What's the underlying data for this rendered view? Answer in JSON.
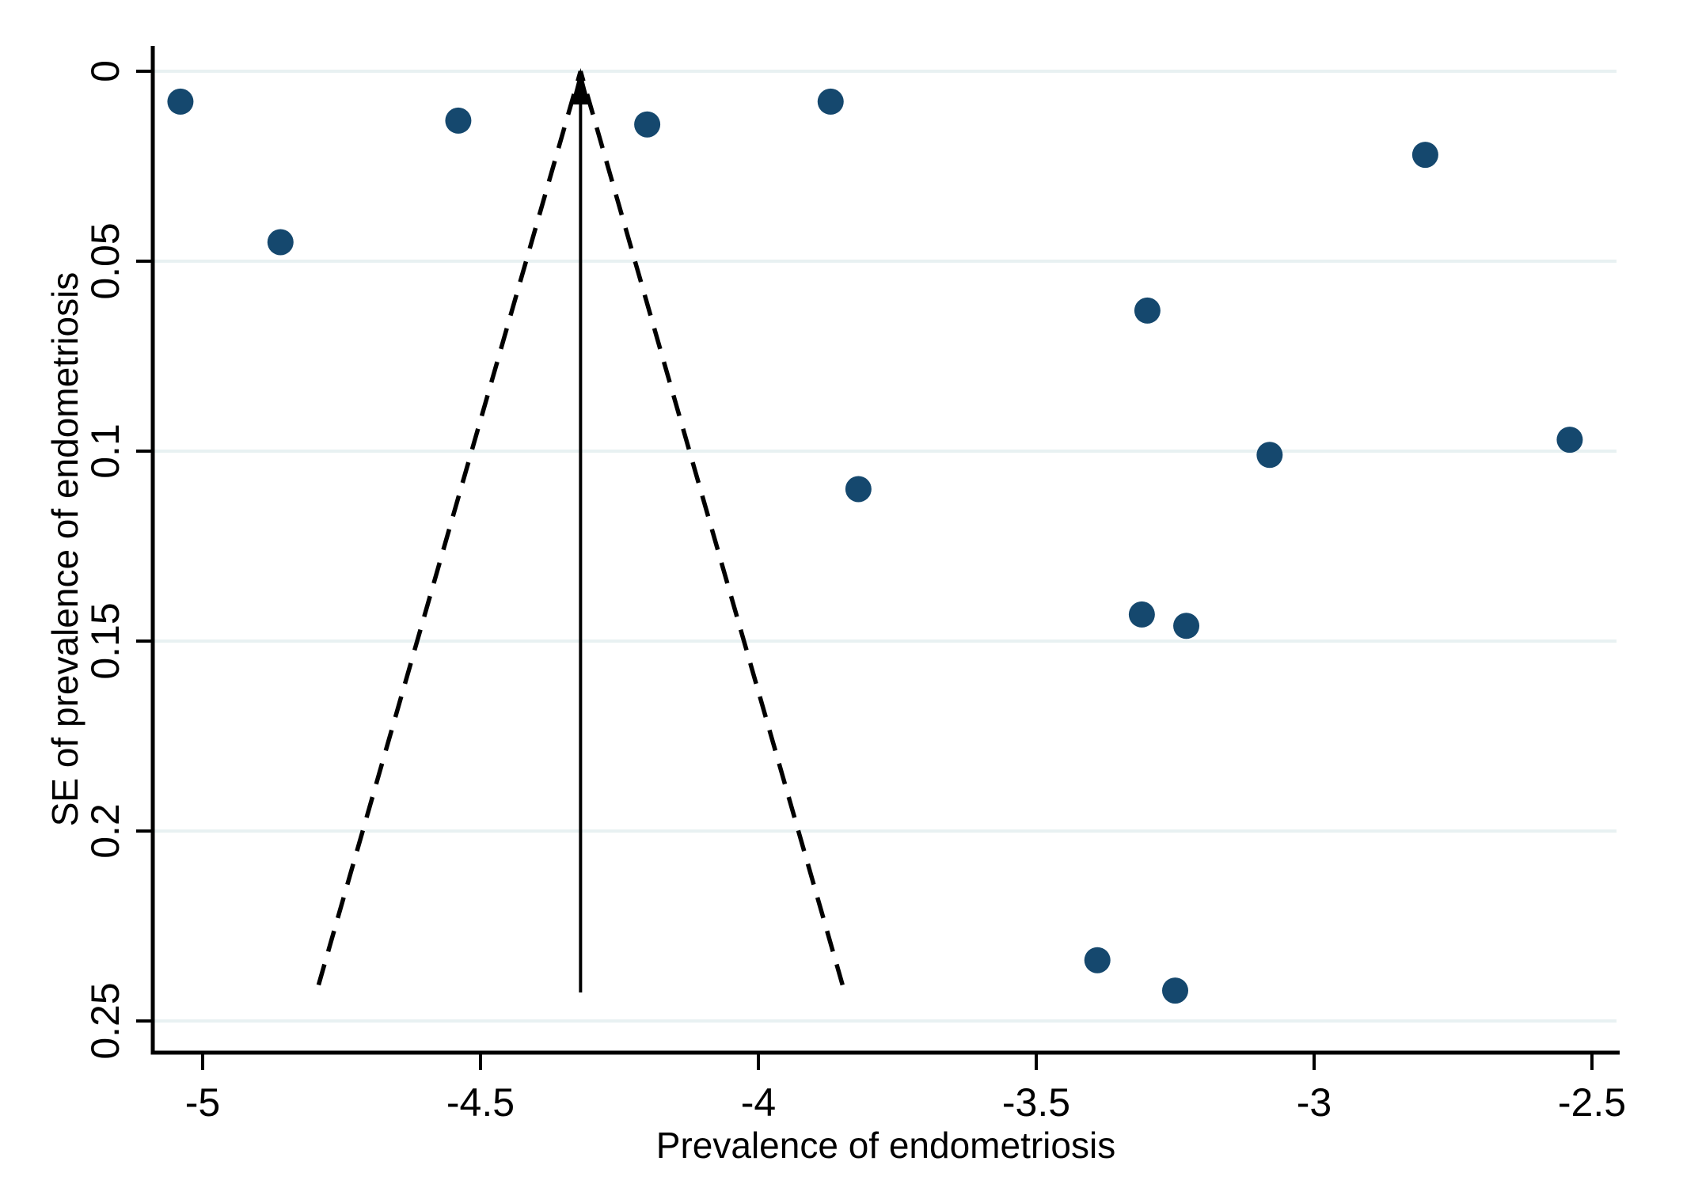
{
  "figure": {
    "kind": "funnel-plot",
    "x_axis_title": "Prevalence of endometriosis",
    "y_axis_title": "SE of prevalence of endometriosis"
  },
  "chart_data": {
    "type": "scatter",
    "title": "",
    "xlabel": "Prevalence of endometriosis",
    "ylabel": "SE of prevalence of endometriosis",
    "xlim": [
      -5.09,
      -2.45
    ],
    "ylim": [
      0,
      0.2583
    ],
    "y_axis_inverted": true,
    "grid": "horizontal",
    "legend": "none",
    "x_ticks": [
      -5,
      -4.5,
      -4,
      -3.5,
      -3,
      -2.5
    ],
    "x_tick_labels": [
      "-5",
      "-4.5",
      "-4",
      "-3.5",
      "-3",
      "-2.5"
    ],
    "y_ticks": [
      0,
      0.05,
      0.1,
      0.15,
      0.2,
      0.25
    ],
    "y_tick_labels": [
      "0",
      "0.05",
      "0.1",
      "0.15",
      "0.2",
      "0.25"
    ],
    "points": [
      {
        "x": -5.04,
        "se": 0.008
      },
      {
        "x": -4.86,
        "se": 0.045
      },
      {
        "x": -4.54,
        "se": 0.013
      },
      {
        "x": -4.2,
        "se": 0.014
      },
      {
        "x": -3.87,
        "se": 0.008
      },
      {
        "x": -3.82,
        "se": 0.11
      },
      {
        "x": -3.3,
        "se": 0.063
      },
      {
        "x": -3.31,
        "se": 0.143
      },
      {
        "x": -3.23,
        "se": 0.146
      },
      {
        "x": -3.08,
        "se": 0.101
      },
      {
        "x": -2.8,
        "se": 0.022
      },
      {
        "x": -2.54,
        "se": 0.097
      },
      {
        "x": -3.39,
        "se": 0.234
      },
      {
        "x": -3.25,
        "se": 0.242
      }
    ],
    "funnel": {
      "center_estimate": -4.32,
      "ci_multiplier": 1.96,
      "se_max": 0.2425,
      "center_line_style": "solid-with-up-arrow",
      "limit_line_style": "dashed"
    },
    "colors": {
      "point": "#15486e",
      "grid": "#e8f1f2",
      "axis": "#000000",
      "funnel_lines": "#000000",
      "background": "#ffffff"
    }
  }
}
